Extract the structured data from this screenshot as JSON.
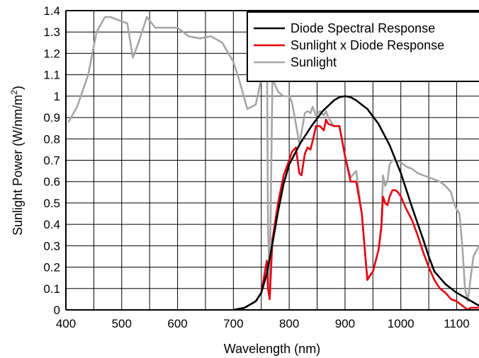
{
  "chart_data": {
    "type": "line",
    "xlabel": "Wavelength (nm)",
    "ylabel": {
      "main": "Sunlight Power (W/nm/m",
      "sup": "2",
      "end": ")"
    },
    "xlim": [
      400,
      1140
    ],
    "ylim": [
      0,
      1.4
    ],
    "x_ticks": [
      "400",
      "500",
      "600",
      "700",
      "800",
      "900",
      "1000",
      "1100"
    ],
    "y_ticks": [
      "0",
      "0.1",
      "0.2",
      "0.3",
      "0.4",
      "0.5",
      "0.6",
      "0.7",
      "0.8",
      "0.9",
      "1",
      "1.1",
      "1.2",
      "1.3",
      "1.4"
    ],
    "grid": true,
    "legend_position": "top-right",
    "series": [
      {
        "name": "Diode Spectral Response",
        "color": "#000000",
        "x": [
          700,
          720,
          740,
          750,
          760,
          770,
          780,
          790,
          800,
          820,
          840,
          860,
          880,
          890,
          900,
          910,
          920,
          940,
          960,
          980,
          1000,
          1020,
          1040,
          1050,
          1060,
          1070,
          1080,
          1100,
          1120,
          1140
        ],
        "y": [
          0,
          0.01,
          0.04,
          0.08,
          0.17,
          0.31,
          0.46,
          0.59,
          0.68,
          0.78,
          0.86,
          0.93,
          0.98,
          0.995,
          1.0,
          0.995,
          0.98,
          0.94,
          0.87,
          0.77,
          0.64,
          0.48,
          0.33,
          0.25,
          0.18,
          0.15,
          0.12,
          0.08,
          0.05,
          0.02
        ]
      },
      {
        "name": "Sunlight x Diode Response",
        "color": "#e6000f",
        "x": [
          700,
          720,
          740,
          750,
          758,
          760,
          762,
          765,
          770,
          780,
          790,
          800,
          805,
          812,
          818,
          822,
          828,
          833,
          838,
          842,
          848,
          855,
          862,
          866,
          870,
          880,
          890,
          900,
          910,
          920,
          930,
          940,
          950,
          960,
          965,
          968,
          972,
          976,
          980,
          985,
          990,
          995,
          1000,
          1010,
          1020,
          1030,
          1040,
          1050,
          1060,
          1070,
          1080,
          1090,
          1100,
          1110,
          1120,
          1125,
          1130,
          1140
        ],
        "y": [
          0,
          0.01,
          0.04,
          0.08,
          0.2,
          0.23,
          0.1,
          0.05,
          0.33,
          0.5,
          0.63,
          0.7,
          0.74,
          0.76,
          0.64,
          0.63,
          0.73,
          0.76,
          0.75,
          0.79,
          0.86,
          0.86,
          0.84,
          0.89,
          0.87,
          0.86,
          0.86,
          0.72,
          0.6,
          0.6,
          0.45,
          0.14,
          0.18,
          0.28,
          0.38,
          0.53,
          0.5,
          0.49,
          0.53,
          0.56,
          0.56,
          0.55,
          0.53,
          0.47,
          0.42,
          0.35,
          0.27,
          0.2,
          0.14,
          0.1,
          0.08,
          0.05,
          0.04,
          0.02,
          0.0,
          0.01,
          0.01,
          0.01
        ]
      },
      {
        "name": "Sunlight",
        "color": "#a6a6a6",
        "x": [
          405,
          420,
          440,
          455,
          470,
          480,
          490,
          500,
          510,
          520,
          530,
          545,
          560,
          575,
          600,
          620,
          640,
          660,
          680,
          700,
          710,
          725,
          740,
          750,
          758,
          760,
          762,
          765,
          770,
          780,
          790,
          800,
          805,
          812,
          818,
          822,
          828,
          833,
          838,
          842,
          848,
          855,
          862,
          866,
          870,
          880,
          890,
          900,
          910,
          920,
          930,
          940,
          950,
          960,
          965,
          968,
          972,
          976,
          980,
          985,
          990,
          1000,
          1010,
          1020,
          1030,
          1040,
          1050,
          1060,
          1070,
          1080,
          1090,
          1095,
          1100,
          1105,
          1110,
          1115,
          1120,
          1125,
          1130,
          1140
        ],
        "y": [
          0.88,
          0.95,
          1.1,
          1.3,
          1.37,
          1.37,
          1.36,
          1.35,
          1.34,
          1.18,
          1.25,
          1.37,
          1.32,
          1.32,
          1.32,
          1.28,
          1.27,
          1.28,
          1.25,
          1.16,
          1.08,
          0.94,
          0.96,
          1.08,
          1.2,
          1.3,
          0.4,
          0.1,
          1.08,
          1.02,
          1.0,
          1.0,
          0.97,
          0.87,
          0.78,
          0.83,
          0.92,
          0.93,
          0.92,
          0.95,
          0.91,
          0.93,
          0.91,
          0.93,
          0.9,
          0.86,
          0.86,
          0.72,
          0.62,
          0.65,
          0.45,
          0.15,
          0.18,
          0.28,
          0.4,
          0.63,
          0.58,
          0.6,
          0.68,
          0.7,
          0.7,
          0.69,
          0.67,
          0.66,
          0.64,
          0.63,
          0.62,
          0.61,
          0.6,
          0.58,
          0.55,
          0.5,
          0.47,
          0.45,
          0.3,
          0.1,
          0.04,
          0.15,
          0.25,
          0.3
        ]
      }
    ]
  },
  "colors": {
    "grid": "#000000",
    "background": "#ffffff"
  }
}
